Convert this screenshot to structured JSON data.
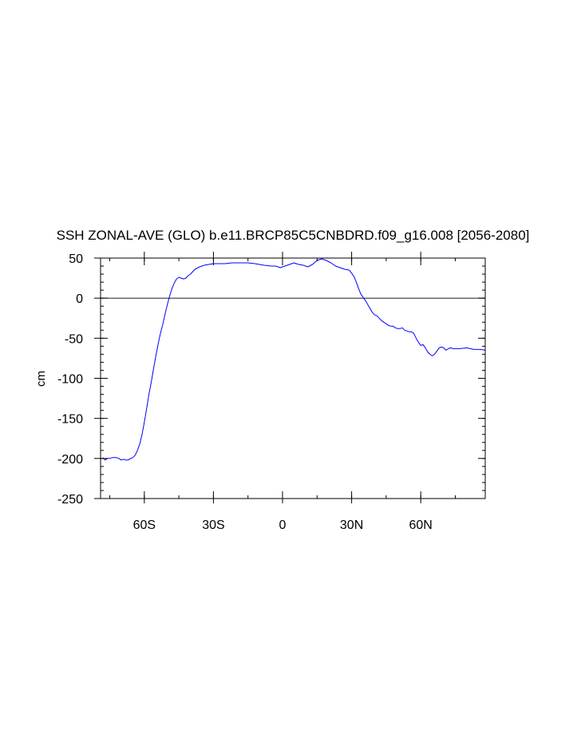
{
  "chart_data": {
    "type": "line",
    "title": "SSH ZONAL-AVE (GLO) b.e11.BRCP85C5CNBDRD.f09_g16.008 [2056-2080]",
    "xlabel": "",
    "ylabel": "cm",
    "xlim": [
      -79,
      88
    ],
    "ylim": [
      -250,
      50
    ],
    "x_ticks": [
      {
        "value": -60,
        "label": "60S"
      },
      {
        "value": -30,
        "label": "30S"
      },
      {
        "value": 0,
        "label": "0"
      },
      {
        "value": 30,
        "label": "30N"
      },
      {
        "value": 60,
        "label": "60N"
      }
    ],
    "y_ticks": [
      {
        "value": 50,
        "label": "50"
      },
      {
        "value": 0,
        "label": "0"
      },
      {
        "value": -50,
        "label": "-50"
      },
      {
        "value": -100,
        "label": "-100"
      },
      {
        "value": -150,
        "label": "-150"
      },
      {
        "value": -200,
        "label": "-200"
      },
      {
        "value": -250,
        "label": "-250"
      }
    ],
    "reference_line": 0,
    "line_color": "#0000ff",
    "series": [
      {
        "x": [
          -78,
          -77,
          -76,
          -75,
          -74,
          -72,
          -71,
          -70,
          -69,
          -68,
          -67,
          -66,
          -65,
          -64,
          -63,
          -62,
          -61,
          -60,
          -59,
          -58,
          -57,
          -56,
          -55,
          -54,
          -53,
          -52,
          -51,
          -50,
          -49,
          -48,
          -47,
          -46,
          -45,
          -44,
          -43,
          -42,
          -41,
          -40,
          -39,
          -38,
          -36,
          -34,
          -32,
          -30,
          -28,
          -25,
          -22,
          -18,
          -15,
          -12,
          -10,
          -8,
          -5,
          -3,
          -1,
          1,
          3,
          5,
          7,
          9,
          11,
          13,
          15,
          17,
          19,
          21,
          23,
          25,
          27,
          29,
          31,
          32,
          33,
          34,
          35,
          36,
          37,
          38,
          39,
          40,
          41,
          42,
          43,
          44,
          45,
          46,
          47,
          48,
          49,
          50,
          51,
          52,
          53,
          54,
          55,
          56,
          57,
          58,
          59,
          60,
          61,
          62,
          63,
          64,
          65,
          66,
          67,
          68,
          69,
          70,
          71,
          72,
          73,
          74,
          75,
          77,
          80,
          83,
          86,
          88
        ],
        "y": [
          -199,
          -202,
          -200,
          -200,
          -199,
          -199,
          -200,
          -202,
          -201,
          -202,
          -202,
          -200,
          -199,
          -196,
          -190,
          -182,
          -170,
          -155,
          -138,
          -120,
          -105,
          -88,
          -72,
          -57,
          -44,
          -33,
          -20,
          -8,
          3,
          12,
          19,
          24,
          26,
          25,
          24,
          25,
          28,
          30,
          33,
          36,
          39,
          41,
          42,
          43,
          43,
          43,
          44,
          44,
          44,
          43,
          42,
          41,
          40,
          40,
          38,
          40,
          42,
          44,
          42,
          41,
          39,
          42,
          47,
          49,
          47,
          44,
          40,
          38,
          36,
          35,
          27,
          20,
          12,
          5,
          1,
          -3,
          -8,
          -13,
          -18,
          -21,
          -22,
          -25,
          -28,
          -30,
          -32,
          -34,
          -35,
          -35,
          -37,
          -38,
          -38,
          -37,
          -40,
          -41,
          -42,
          -42,
          -44,
          -50,
          -55,
          -59,
          -58,
          -62,
          -67,
          -70,
          -72,
          -70,
          -66,
          -62,
          -61,
          -62,
          -65,
          -63,
          -62,
          -63,
          -63,
          -63,
          -62,
          -64,
          -64,
          -65
        ]
      }
    ]
  }
}
